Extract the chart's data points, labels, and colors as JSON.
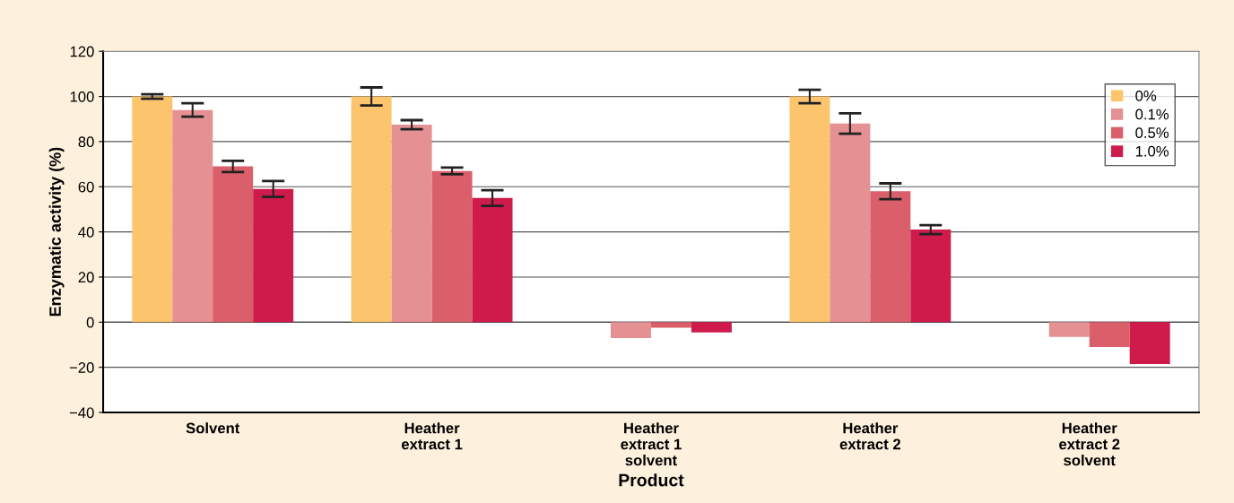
{
  "chart_data": {
    "type": "bar",
    "xlabel": "Product",
    "ylabel": "Enzymatic activity (%)",
    "categories": [
      "Solvent",
      "Heather\nextract 1",
      "Heather\nextract 1\nsolvent",
      "Heather\nextract 2",
      "Heather\nextract 2\nsolvent"
    ],
    "series": [
      {
        "name": "0%",
        "color": "#fdc46e",
        "values": [
          100,
          100,
          null,
          100,
          null
        ],
        "errors": [
          1,
          4,
          null,
          3,
          null
        ]
      },
      {
        "name": "0.1%",
        "color": "#e59093",
        "values": [
          94,
          87.5,
          -7,
          88,
          -6.5
        ],
        "errors": [
          3,
          2,
          null,
          4.5,
          null
        ]
      },
      {
        "name": "0.5%",
        "color": "#db5f6a",
        "values": [
          69,
          67,
          -2.5,
          58,
          -11
        ],
        "errors": [
          2.5,
          1.5,
          null,
          3.5,
          null
        ]
      },
      {
        "name": "1.0%",
        "color": "#cf1a4c",
        "values": [
          59,
          55,
          -4.5,
          41,
          -18.5
        ],
        "errors": [
          3.5,
          3.5,
          null,
          2,
          null
        ]
      }
    ],
    "ylim": [
      -40,
      120
    ],
    "yticks": [
      {
        "value": -40,
        "label": "−40"
      },
      {
        "value": -20,
        "label": "−20"
      },
      0,
      20,
      40,
      60,
      80,
      100,
      120
    ],
    "grid": "y",
    "legend": "top right"
  }
}
